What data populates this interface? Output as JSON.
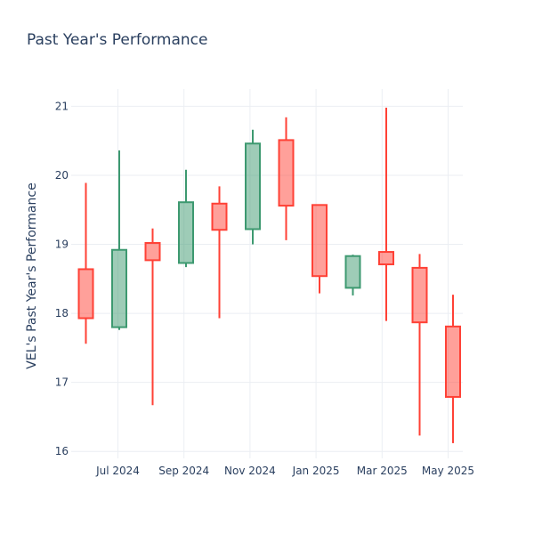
{
  "chart_data": {
    "type": "candlestick",
    "title": "Past Year's Performance",
    "ylabel": "VEL's Past Year's Performance",
    "xlabel": "",
    "ylim": [
      15.9,
      21.25
    ],
    "y_ticks": [
      16,
      17,
      18,
      19,
      20,
      21
    ],
    "x_ticks": [
      "Jul 2024",
      "Sep 2024",
      "Nov 2024",
      "Jan 2025",
      "Mar 2025",
      "May 2025"
    ],
    "colors": {
      "increasing": "#3d9970",
      "decreasing": "#ff4136"
    },
    "candles": [
      {
        "open": 18.64,
        "high": 19.89,
        "low": 17.56,
        "close": 17.93,
        "direction": "decreasing"
      },
      {
        "open": 17.8,
        "high": 20.36,
        "low": 17.76,
        "close": 18.92,
        "direction": "increasing"
      },
      {
        "open": 19.02,
        "high": 19.23,
        "low": 16.67,
        "close": 18.77,
        "direction": "decreasing"
      },
      {
        "open": 18.73,
        "high": 20.08,
        "low": 18.67,
        "close": 19.61,
        "direction": "increasing"
      },
      {
        "open": 19.59,
        "high": 19.84,
        "low": 17.93,
        "close": 19.21,
        "direction": "decreasing"
      },
      {
        "open": 19.22,
        "high": 20.66,
        "low": 19.0,
        "close": 20.46,
        "direction": "increasing"
      },
      {
        "open": 20.51,
        "high": 20.84,
        "low": 19.06,
        "close": 19.56,
        "direction": "decreasing"
      },
      {
        "open": 19.57,
        "high": 19.57,
        "low": 18.29,
        "close": 18.54,
        "direction": "decreasing"
      },
      {
        "open": 18.37,
        "high": 18.85,
        "low": 18.26,
        "close": 18.83,
        "direction": "increasing"
      },
      {
        "open": 18.89,
        "high": 20.98,
        "low": 17.89,
        "close": 18.71,
        "direction": "decreasing"
      },
      {
        "open": 18.66,
        "high": 18.86,
        "low": 16.23,
        "close": 17.87,
        "direction": "decreasing"
      },
      {
        "open": 17.81,
        "high": 18.27,
        "low": 16.12,
        "close": 16.79,
        "direction": "decreasing"
      }
    ]
  }
}
